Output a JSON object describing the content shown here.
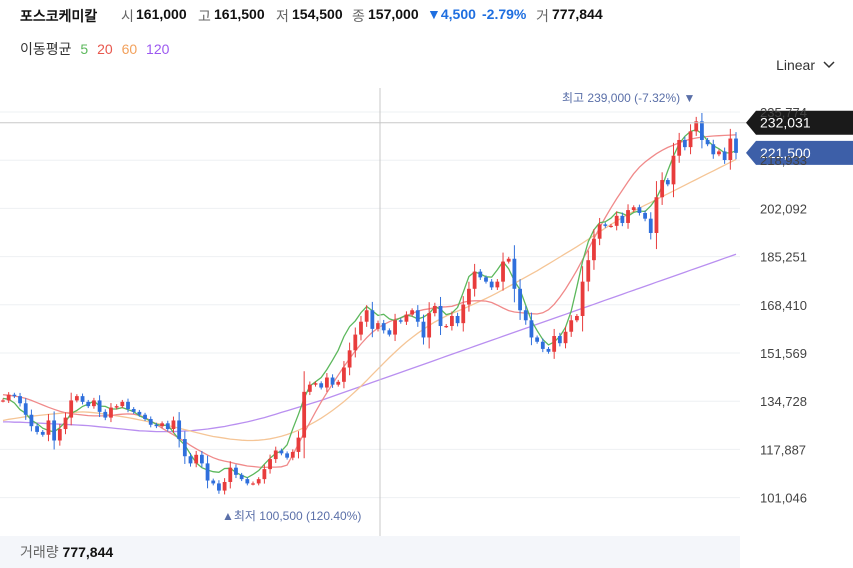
{
  "header": {
    "name": "포스코케미칼",
    "open_label": "시",
    "open": "161,000",
    "high_label": "고",
    "high": "161,500",
    "low_label": "저",
    "low": "154,500",
    "close_label": "종",
    "close": "157,000",
    "change": "▼4,500",
    "change_pct": "-2.79%",
    "volume_label": "거",
    "volume": "777,844"
  },
  "ma": {
    "title": "이동평균",
    "items": [
      {
        "label": "5",
        "color": "#5cb85c"
      },
      {
        "label": "20",
        "color": "#e8574d"
      },
      {
        "label": "60",
        "color": "#f2a15c"
      },
      {
        "label": "120",
        "color": "#9c59f0"
      }
    ]
  },
  "scale": {
    "label": "Linear"
  },
  "chart_data": {
    "type": "candlestick",
    "y_ticks": [
      "235,774",
      "218,933",
      "202,092",
      "185,251",
      "168,410",
      "151,569",
      "134,728",
      "117,887",
      "101,046"
    ],
    "crosshair_value": "232,031",
    "current_price": "221,500",
    "high_marker": {
      "label": "최고",
      "value": "239,000",
      "pct": "(-7.32%)"
    },
    "low_marker": {
      "label": "최저",
      "value": "100,500",
      "pct": "(120.40%)"
    },
    "colors": {
      "up": "#e83c3c",
      "down": "#2f6fdc",
      "ma5": "#5cb85c",
      "ma20": "#f08a8a",
      "ma60": "#f5c596",
      "ma120": "#b98ff0",
      "badge_current": "#3d5fa8",
      "badge_cross": "#1a1a1a",
      "marker_text": "#5a6fa8"
    },
    "closes": [
      135000,
      137000,
      136500,
      134000,
      130000,
      126000,
      124000,
      123000,
      128000,
      121000,
      125000,
      129000,
      135000,
      136500,
      134500,
      133000,
      135000,
      131000,
      129000,
      132500,
      133000,
      134500,
      132000,
      131000,
      130000,
      128500,
      126500,
      126000,
      127000,
      125000,
      128000,
      121500,
      115500,
      113000,
      116000,
      113000,
      107000,
      106000,
      103500,
      106500,
      111500,
      109000,
      107500,
      106000,
      106000,
      107500,
      111000,
      114500,
      117500,
      116500,
      115000,
      117000,
      122000,
      138000,
      140500,
      141000,
      139500,
      143000,
      140500,
      141500,
      146500,
      152500,
      158000,
      162500,
      166500,
      160000,
      162000,
      159500,
      158000,
      163000,
      162500,
      165000,
      166500,
      162500,
      157000,
      165500,
      168000,
      161000,
      161000,
      164500,
      162000,
      168500,
      174000,
      180000,
      178000,
      176500,
      174500,
      176500,
      183500,
      184500,
      174000,
      166500,
      163000,
      157000,
      155500,
      153000,
      152000,
      157500,
      155000,
      159000,
      163000,
      164500,
      176500,
      184000,
      191500,
      196500,
      196000,
      196000,
      199500,
      197000,
      201500,
      202500,
      200500,
      198500,
      193500,
      206000,
      212000,
      210500,
      220500,
      226000,
      223500,
      229000,
      232500,
      226000,
      224500,
      221000,
      222000,
      219000,
      226500,
      221500
    ],
    "ma5": [
      135700,
      135400,
      134100,
      131800,
      130500,
      128100,
      126900,
      125300,
      124500,
      124000,
      125500,
      127500,
      130500,
      131500,
      132900,
      133700,
      134800,
      133000,
      132900,
      132000,
      132000,
      132500,
      131800,
      131100,
      129600,
      128800,
      127700,
      126700,
      126200,
      126400,
      123800,
      121400,
      119400,
      116200,
      113200,
      111500,
      110700,
      110100,
      109900,
      111200,
      111300,
      109800,
      108800,
      108000,
      109100,
      110500,
      112700,
      114800,
      116500,
      117300,
      119500,
      125100,
      130200,
      135800,
      140000,
      141500,
      143000,
      145800,
      149100,
      152500,
      157300,
      160800,
      162800,
      165700,
      167800,
      166300,
      164700,
      165100,
      163500,
      162900,
      163900,
      164800,
      164400,
      163500,
      164100,
      165400,
      167700,
      166900,
      165000,
      165500,
      167500,
      172800,
      178300,
      179900,
      179200,
      178200,
      178100,
      180600,
      183500,
      181000,
      176800,
      173600,
      168200,
      162900,
      159400,
      156300,
      154400,
      155400,
      157400,
      160500,
      166200,
      174700,
      183600,
      190500,
      194600,
      197100,
      197400,
      198700,
      200800,
      200300,
      199400,
      200700,
      201200,
      201000,
      203000,
      205700,
      209700,
      215300,
      220400,
      224700,
      227300,
      229000,
      229600,
      228200,
      225700,
      224000,
      222900,
      221500,
      221500,
      222200
    ],
    "ma20": [
      137000,
      136800,
      136500,
      136200,
      135700,
      135000,
      134200,
      133400,
      132600,
      131900,
      131200,
      130700,
      130400,
      130100,
      129900,
      129700,
      129600,
      129600,
      129600,
      129700,
      130000,
      130200,
      130300,
      130200,
      129800,
      129000,
      127900,
      126600,
      125300,
      124100,
      123000,
      121800,
      120600,
      119300,
      118100,
      117000,
      115900,
      115000,
      114300,
      113800,
      113400,
      112900,
      112500,
      112100,
      111900,
      111700,
      111600,
      111700,
      111700,
      111800,
      112400,
      116000,
      119800,
      123700,
      127300,
      131000,
      134500,
      137700,
      140800,
      143800,
      146800,
      149600,
      152300,
      154700,
      156900,
      158800,
      160300,
      161500,
      162500,
      163300,
      163800,
      164600,
      165400,
      166200,
      166700,
      167000,
      167400,
      167600,
      167700,
      167900,
      168500,
      169300,
      169700,
      169800,
      169800,
      169700,
      169200,
      168300,
      167300,
      166400,
      165900,
      165700,
      165500,
      165300,
      165200,
      165600,
      166700,
      168600,
      171100,
      173900,
      177100,
      180500,
      184200,
      187800,
      191500,
      195300,
      198900,
      202300,
      205500,
      208500,
      211400,
      214200,
      216500,
      218300,
      219800,
      221200,
      222400,
      223400,
      224200,
      225000,
      225700,
      226300,
      226700,
      227000,
      227200,
      227400,
      227500,
      227600,
      227700,
      227800
    ],
    "ma60": [
      128000,
      128400,
      128700,
      129000,
      129300,
      129500,
      129700,
      129900,
      130100,
      130300,
      130500,
      130700,
      130800,
      130900,
      131000,
      130900,
      130700,
      130500,
      130200,
      129900,
      129600,
      129300,
      129000,
      128600,
      128200,
      127800,
      127400,
      127000,
      126600,
      126200,
      125800,
      125300,
      124800,
      124300,
      123800,
      123300,
      122800,
      122400,
      122100,
      121800,
      121500,
      121300,
      121100,
      121000,
      121000,
      121100,
      121300,
      121600,
      122000,
      122500,
      123100,
      123800,
      124600,
      125500,
      126500,
      127600,
      128800,
      130100,
      131500,
      133000,
      134600,
      136300,
      138100,
      140000,
      142000,
      144000,
      146000,
      148000,
      150000,
      151900,
      153700,
      155400,
      157000,
      158500,
      159900,
      161200,
      162400,
      163500,
      164500,
      165400,
      166200,
      167000,
      167900,
      168800,
      169700,
      170600,
      171600,
      172600,
      173700,
      174800,
      175900,
      177000,
      178100,
      179200,
      180300,
      181500,
      182700,
      183900,
      185100,
      186300,
      187500,
      188700,
      190000,
      191300,
      192600,
      193900,
      195200,
      196500,
      197700,
      198900,
      200000,
      201100,
      202200,
      203200,
      204200,
      205200,
      206200,
      207200,
      208200,
      209200,
      210200,
      211200,
      212200,
      213200,
      214200,
      215200,
      216200,
      217200,
      218200,
      219200
    ],
    "ma120": [
      127500,
      127500,
      127400,
      127400,
      127300,
      127200,
      127100,
      127000,
      126900,
      126800,
      126700,
      126600,
      126500,
      126400,
      126300,
      126200,
      126000,
      125800,
      125600,
      125400,
      125200,
      125000,
      124800,
      124600,
      124400,
      124300,
      124200,
      124100,
      124100,
      124100,
      124100,
      124200,
      124300,
      124400,
      124600,
      124800,
      125000,
      125300,
      125600,
      125900,
      126300,
      126700,
      127100,
      127500,
      128000,
      128500,
      129000,
      129600,
      130200,
      130800,
      131400,
      132000,
      132600,
      133200,
      133800,
      134400,
      135000,
      135700,
      136400,
      137100,
      137800,
      138500,
      139200,
      139900,
      140600,
      141300,
      142000,
      142700,
      143400,
      144100,
      144800,
      145500,
      146200,
      146900,
      147600,
      148300,
      149000,
      149700,
      150400,
      151100,
      151800,
      152500,
      153200,
      153900,
      154600,
      155300,
      156000,
      156700,
      157400,
      158100,
      158800,
      159500,
      160200,
      160900,
      161600,
      162300,
      163000,
      163700,
      164400,
      165100,
      165800,
      166500,
      167200,
      167900,
      168600,
      169300,
      170000,
      170700,
      171400,
      172100,
      172800,
      173500,
      174200,
      174900,
      175600,
      176300,
      177000,
      177700,
      178400,
      179100,
      179800,
      180500,
      181200,
      181900,
      182600,
      183300,
      184000,
      184700,
      185400,
      186100
    ]
  },
  "volume": {
    "label": "거래량",
    "value": "777,844"
  }
}
